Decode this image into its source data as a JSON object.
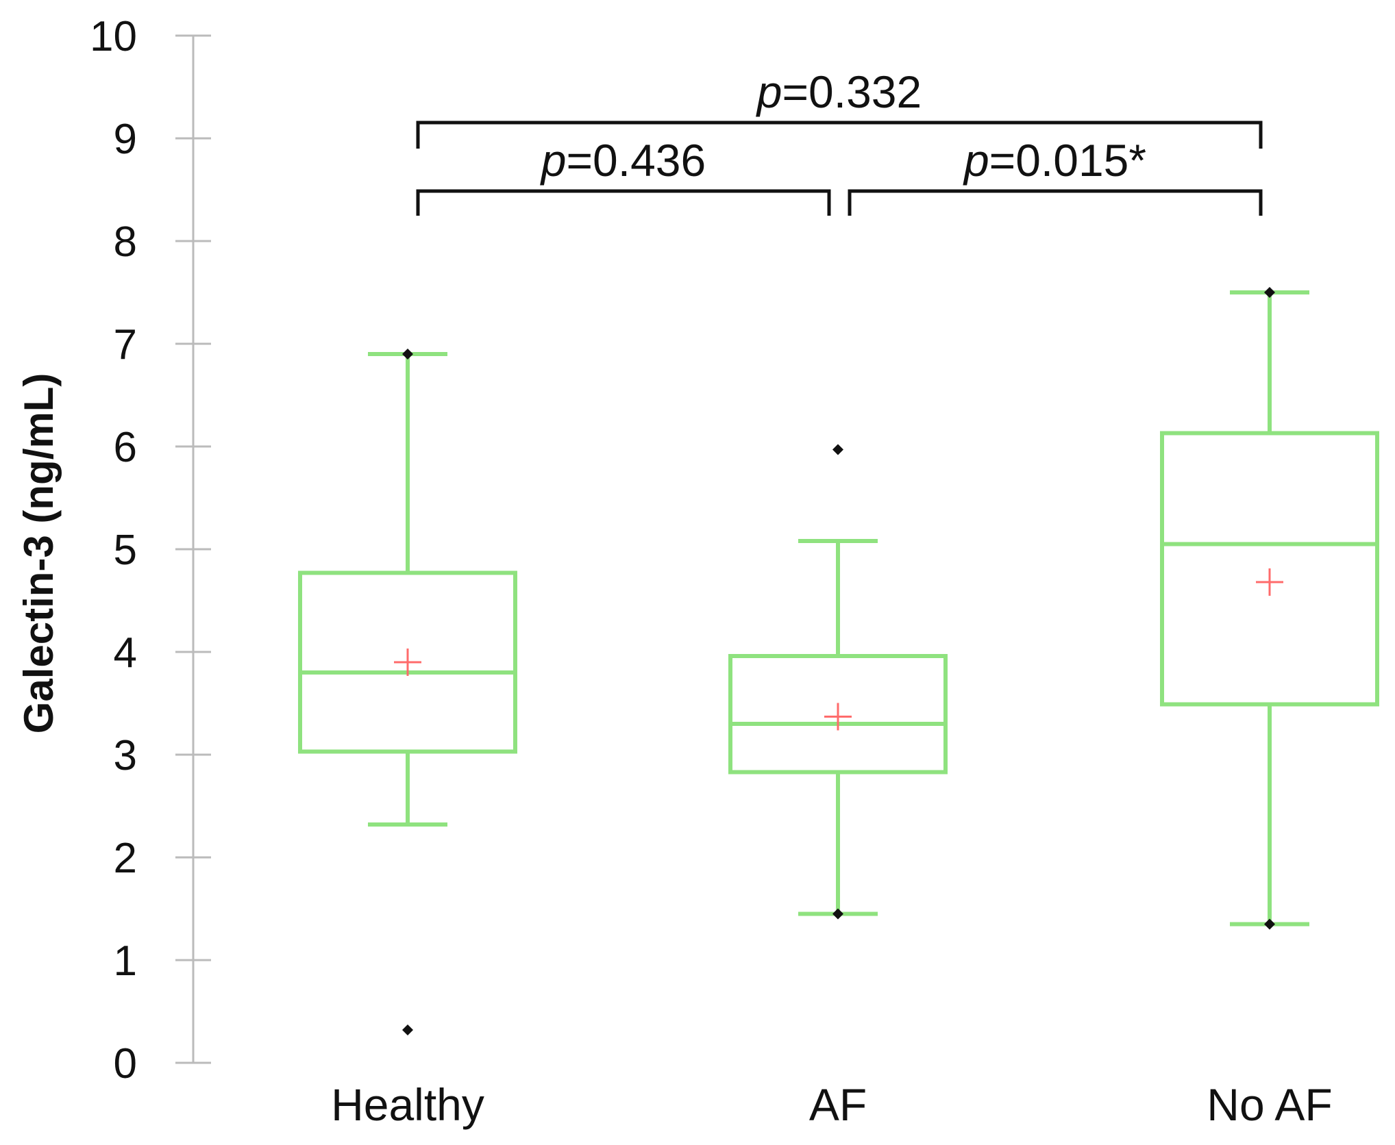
{
  "chart_data": {
    "type": "box",
    "title": "",
    "xlabel": "",
    "ylabel": "Galectin-3 (ng/mL)",
    "ylim": [
      0,
      10
    ],
    "yticks": [
      0,
      1,
      2,
      3,
      4,
      5,
      6,
      7,
      8,
      9,
      10
    ],
    "grid": false,
    "categories": [
      "Healthy",
      "AF",
      "No AF"
    ],
    "boxes": [
      {
        "category": "Healthy",
        "whisker_low": 2.32,
        "q1": 3.03,
        "median": 3.8,
        "q3": 4.77,
        "whisker_high": 6.9,
        "mean": 3.9,
        "outliers": [
          6.9,
          0.32
        ]
      },
      {
        "category": "AF",
        "whisker_low": 1.45,
        "q1": 2.83,
        "median": 3.3,
        "q3": 3.96,
        "whisker_high": 5.08,
        "mean": 3.37,
        "outliers": [
          5.97,
          1.45
        ]
      },
      {
        "category": "No AF",
        "whisker_low": 1.35,
        "q1": 3.49,
        "median": 5.05,
        "q3": 6.13,
        "whisker_high": 7.5,
        "mean": 4.68,
        "outliers": [
          7.5,
          1.35
        ]
      }
    ],
    "comparisons": [
      {
        "from": 0,
        "to": 2,
        "level": 2,
        "p_prefix": "p",
        "p_value": "=0.332"
      },
      {
        "from": 0,
        "to": 1,
        "level": 1,
        "p_prefix": "p",
        "p_value": "=0.436"
      },
      {
        "from": 1,
        "to": 2,
        "level": 1,
        "p_prefix": "p",
        "p_value": "=0.015*"
      }
    ],
    "colors": {
      "box": "#8fe27f",
      "mean": "#ff6b6b",
      "outlier": "#111111",
      "axis": "#bbbbbb",
      "bracket": "#111111"
    }
  }
}
